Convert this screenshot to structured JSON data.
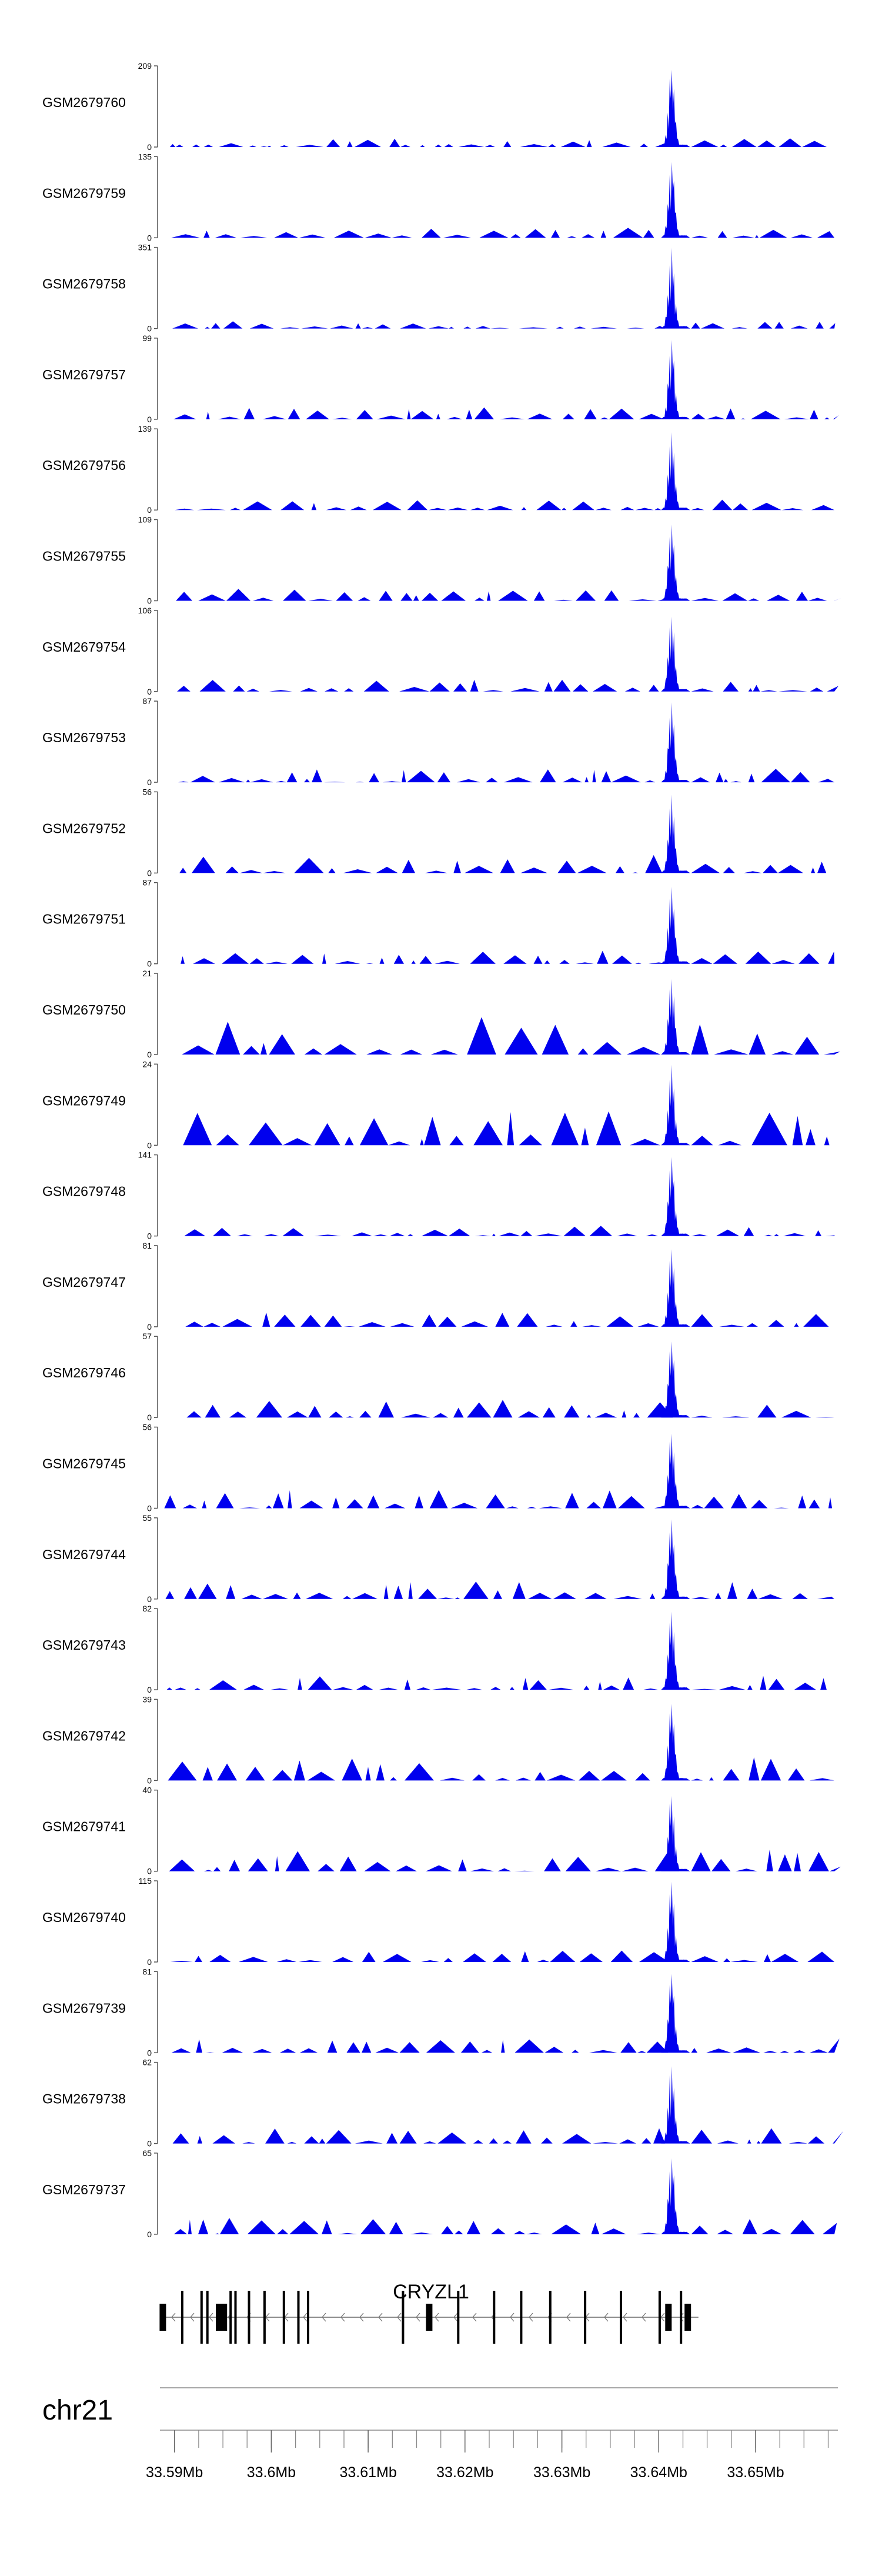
{
  "chart_data": {
    "type": "area",
    "title": "",
    "chromosome": "chr21",
    "xlim": [
      33.5885,
      33.6585
    ],
    "x_unit": "Mb",
    "x_ticks": [
      33.59,
      33.6,
      33.61,
      33.62,
      33.63,
      33.64,
      33.65
    ],
    "x_tick_labels": [
      "33.59Mb",
      "33.6Mb",
      "33.61Mb",
      "33.62Mb",
      "33.63Mb",
      "33.64Mb",
      "33.65Mb"
    ],
    "peak": {
      "start": 33.6411,
      "end": 33.6425
    },
    "tracks": [
      {
        "name": "GSM2679760",
        "ymax": 209,
        "ymin": 0
      },
      {
        "name": "GSM2679759",
        "ymax": 135,
        "ymin": 0
      },
      {
        "name": "GSM2679758",
        "ymax": 351,
        "ymin": 0
      },
      {
        "name": "GSM2679757",
        "ymax": 99,
        "ymin": 0
      },
      {
        "name": "GSM2679756",
        "ymax": 139,
        "ymin": 0
      },
      {
        "name": "GSM2679755",
        "ymax": 109,
        "ymin": 0
      },
      {
        "name": "GSM2679754",
        "ymax": 106,
        "ymin": 0
      },
      {
        "name": "GSM2679753",
        "ymax": 87,
        "ymin": 0
      },
      {
        "name": "GSM2679752",
        "ymax": 56,
        "ymin": 0
      },
      {
        "name": "GSM2679751",
        "ymax": 87,
        "ymin": 0
      },
      {
        "name": "GSM2679750",
        "ymax": 21,
        "ymin": 0
      },
      {
        "name": "GSM2679749",
        "ymax": 24,
        "ymin": 0
      },
      {
        "name": "GSM2679748",
        "ymax": 141,
        "ymin": 0
      },
      {
        "name": "GSM2679747",
        "ymax": 81,
        "ymin": 0
      },
      {
        "name": "GSM2679746",
        "ymax": 57,
        "ymin": 0
      },
      {
        "name": "GSM2679745",
        "ymax": 56,
        "ymin": 0
      },
      {
        "name": "GSM2679744",
        "ymax": 55,
        "ymin": 0
      },
      {
        "name": "GSM2679743",
        "ymax": 82,
        "ymin": 0
      },
      {
        "name": "GSM2679742",
        "ymax": 39,
        "ymin": 0
      },
      {
        "name": "GSM2679741",
        "ymax": 40,
        "ymin": 0
      },
      {
        "name": "GSM2679740",
        "ymax": 115,
        "ymin": 0
      },
      {
        "name": "GSM2679739",
        "ymax": 81,
        "ymin": 0
      },
      {
        "name": "GSM2679738",
        "ymax": 62,
        "ymin": 0
      },
      {
        "name": "GSM2679737",
        "ymax": 65,
        "ymin": 0
      }
    ],
    "gene": {
      "name": "CRYZL1",
      "strand": "-",
      "start": 33.5885,
      "end": 33.6441,
      "exons": [
        33.5888,
        33.5908,
        33.5928,
        33.5934,
        33.5946,
        33.5951,
        33.5958,
        33.5963,
        33.5977,
        33.5993,
        33.6013,
        33.6028,
        33.6038,
        33.6136,
        33.6163,
        33.6193,
        33.623,
        33.6258,
        33.6288,
        33.6324,
        33.6361,
        33.6401,
        33.641,
        33.6423,
        33.643
      ]
    }
  }
}
